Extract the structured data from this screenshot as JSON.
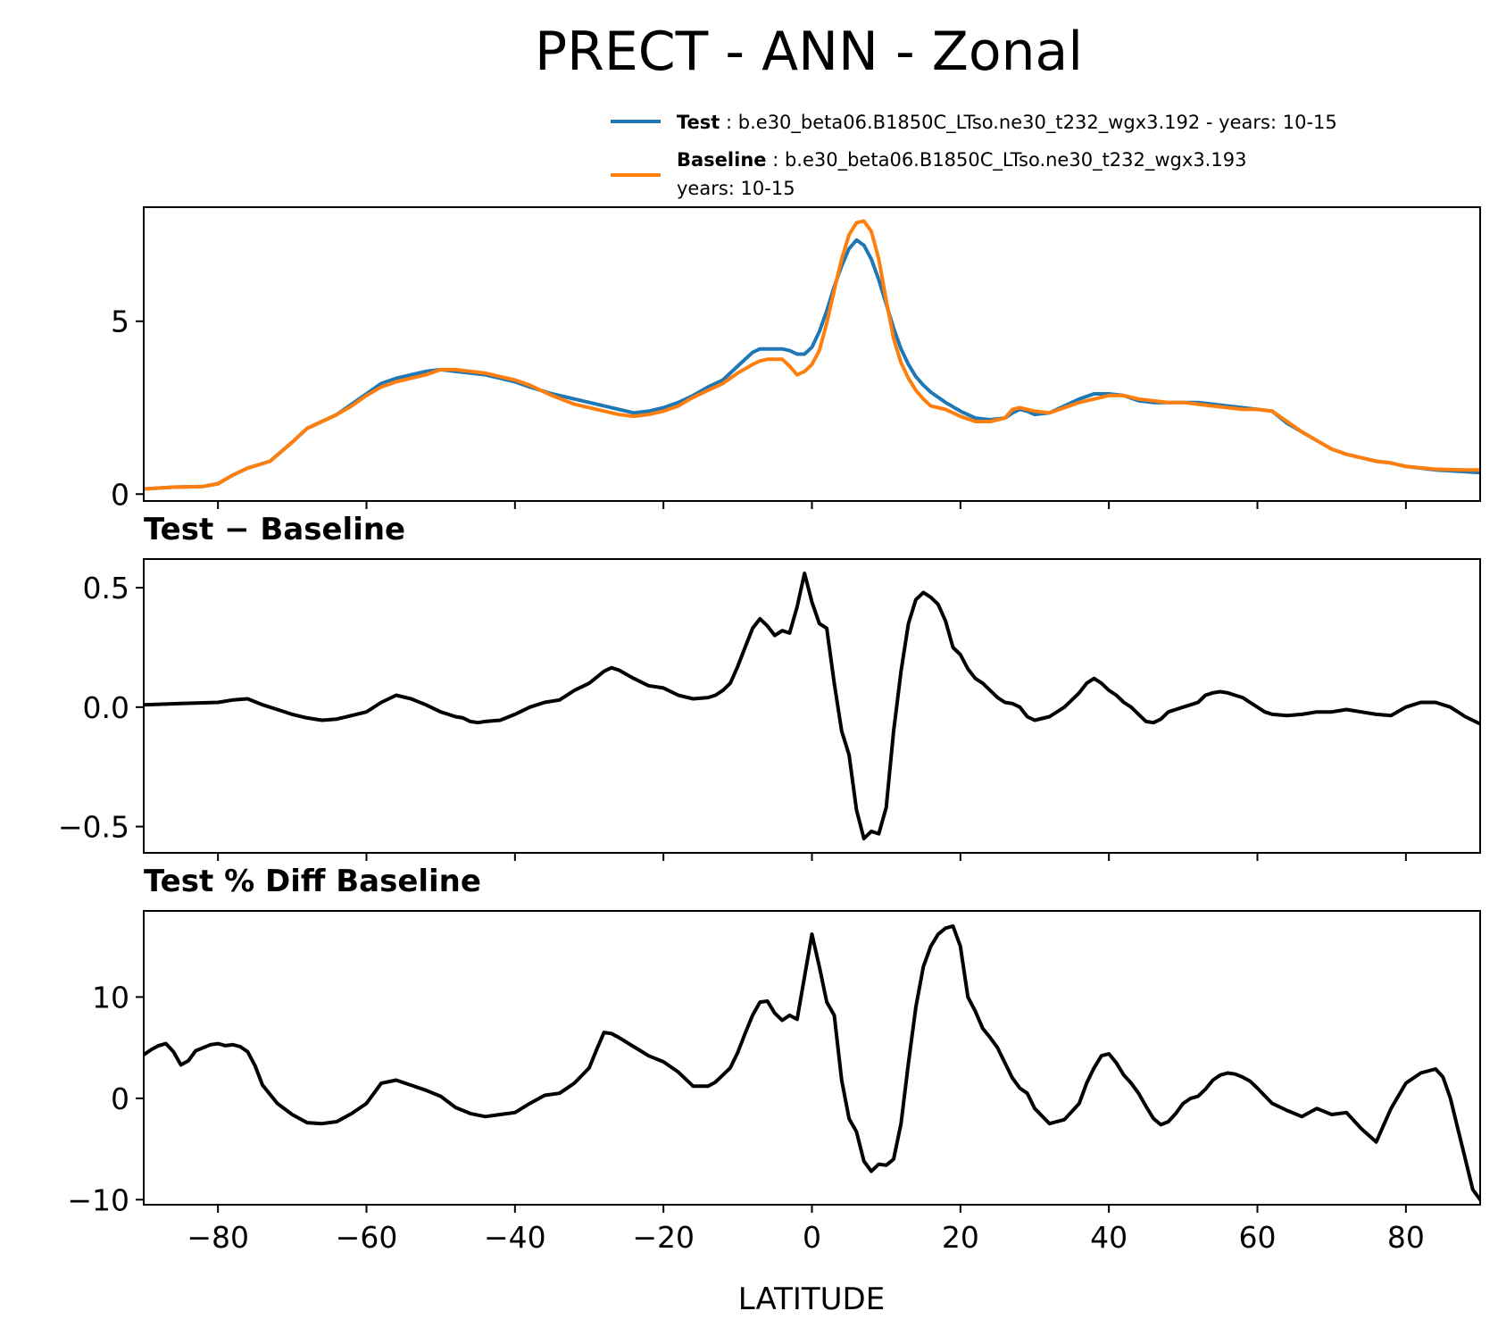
{
  "chart_data": {
    "type": "line",
    "title": "PRECT - ANN - Zonal",
    "xlabel": "LATITUDE",
    "xlim": [
      -90,
      90
    ],
    "xticks": [
      -80,
      -60,
      -40,
      -20,
      0,
      20,
      40,
      60,
      80
    ],
    "xtick_labels": [
      "−80",
      "−60",
      "−40",
      "−20",
      "0",
      "20",
      "40",
      "60",
      "80"
    ],
    "colors": {
      "test": "#1f77b4",
      "baseline": "#ff7f0e",
      "diff": "#000000"
    },
    "legend": {
      "test_label": "Test",
      "test_text": ": b.e30_beta06.B1850C_LTso.ne30_t232_wgx3.192 - years: 10-15",
      "baseline_label": "Baseline",
      "baseline_text": ": b.e30_beta06.B1850C_LTso.ne30_t232_wgx3.193",
      "baseline_text2": "years: 10-15"
    },
    "panels": [
      {
        "title": "",
        "ylim": [
          -0.2,
          8.3
        ],
        "yticks": [
          0,
          5
        ],
        "ytick_labels": [
          "0",
          "5"
        ],
        "series": [
          {
            "name": "Test",
            "color_key": "test",
            "x": [
              -90,
              -86,
              -82,
              -80,
              -78,
              -76,
              -73,
              -70,
              -68,
              -66,
              -64,
              -62,
              -60,
              -58,
              -56,
              -54,
              -52,
              -50,
              -48,
              -46,
              -44,
              -42,
              -40,
              -38,
              -35,
              -32,
              -29,
              -26,
              -24,
              -22,
              -20,
              -18,
              -16,
              -14,
              -12,
              -10,
              -8,
              -7,
              -6,
              -5,
              -4,
              -3,
              -2,
              -1,
              0,
              1,
              2,
              3,
              4,
              5,
              6,
              7,
              8,
              9,
              10,
              11,
              12,
              13,
              14,
              15,
              16,
              17,
              18,
              20,
              22,
              24,
              26,
              27,
              28,
              29,
              30,
              32,
              34,
              36,
              38,
              40,
              42,
              44,
              46,
              48,
              50,
              52,
              54,
              56,
              58,
              60,
              62,
              64,
              66,
              68,
              70,
              72,
              74,
              76,
              78,
              80,
              84,
              88,
              90
            ],
            "values": [
              0.15,
              0.2,
              0.22,
              0.3,
              0.55,
              0.75,
              0.95,
              1.5,
              1.9,
              2.1,
              2.3,
              2.6,
              2.9,
              3.2,
              3.35,
              3.45,
              3.55,
              3.6,
              3.55,
              3.5,
              3.45,
              3.35,
              3.25,
              3.1,
              2.9,
              2.75,
              2.6,
              2.45,
              2.35,
              2.4,
              2.5,
              2.65,
              2.85,
              3.1,
              3.3,
              3.7,
              4.1,
              4.2,
              4.2,
              4.2,
              4.2,
              4.15,
              4.05,
              4.05,
              4.25,
              4.7,
              5.3,
              6.0,
              6.6,
              7.1,
              7.35,
              7.2,
              6.8,
              6.2,
              5.5,
              4.8,
              4.2,
              3.75,
              3.4,
              3.15,
              2.95,
              2.8,
              2.65,
              2.4,
              2.2,
              2.15,
              2.2,
              2.35,
              2.45,
              2.4,
              2.3,
              2.35,
              2.55,
              2.75,
              2.9,
              2.9,
              2.85,
              2.7,
              2.65,
              2.65,
              2.65,
              2.65,
              2.6,
              2.55,
              2.5,
              2.45,
              2.4,
              2.05,
              1.8,
              1.55,
              1.3,
              1.15,
              1.05,
              0.95,
              0.9,
              0.8,
              0.7,
              0.65,
              0.62
            ]
          },
          {
            "name": "Baseline",
            "color_key": "baseline",
            "x": [
              -90,
              -86,
              -82,
              -80,
              -78,
              -76,
              -73,
              -70,
              -68,
              -66,
              -64,
              -62,
              -60,
              -58,
              -56,
              -54,
              -52,
              -50,
              -48,
              -46,
              -44,
              -42,
              -40,
              -38,
              -35,
              -32,
              -29,
              -26,
              -24,
              -22,
              -20,
              -18,
              -16,
              -14,
              -12,
              -10,
              -8,
              -7,
              -6,
              -5,
              -4,
              -3,
              -2,
              -1,
              0,
              1,
              2,
              3,
              4,
              5,
              6,
              7,
              8,
              9,
              10,
              11,
              12,
              13,
              14,
              15,
              16,
              17,
              18,
              20,
              22,
              24,
              26,
              27,
              28,
              29,
              30,
              32,
              34,
              36,
              38,
              40,
              42,
              44,
              46,
              48,
              50,
              52,
              54,
              56,
              58,
              60,
              62,
              64,
              66,
              68,
              70,
              72,
              74,
              76,
              78,
              80,
              84,
              88,
              90
            ],
            "values": [
              0.15,
              0.2,
              0.22,
              0.3,
              0.55,
              0.75,
              0.95,
              1.5,
              1.9,
              2.1,
              2.3,
              2.55,
              2.85,
              3.1,
              3.25,
              3.35,
              3.45,
              3.6,
              3.6,
              3.55,
              3.5,
              3.4,
              3.3,
              3.15,
              2.85,
              2.6,
              2.45,
              2.3,
              2.25,
              2.3,
              2.4,
              2.55,
              2.8,
              3.0,
              3.2,
              3.5,
              3.75,
              3.85,
              3.9,
              3.9,
              3.9,
              3.7,
              3.45,
              3.55,
              3.75,
              4.15,
              4.95,
              5.9,
              6.8,
              7.5,
              7.85,
              7.9,
              7.6,
              6.8,
              5.6,
              4.5,
              3.8,
              3.35,
              3.0,
              2.75,
              2.55,
              2.5,
              2.45,
              2.25,
              2.1,
              2.1,
              2.2,
              2.45,
              2.5,
              2.45,
              2.4,
              2.35,
              2.5,
              2.65,
              2.75,
              2.85,
              2.85,
              2.75,
              2.7,
              2.65,
              2.65,
              2.6,
              2.55,
              2.5,
              2.45,
              2.45,
              2.4,
              2.1,
              1.8,
              1.55,
              1.3,
              1.15,
              1.05,
              0.95,
              0.9,
              0.8,
              0.72,
              0.7,
              0.7
            ]
          }
        ]
      },
      {
        "title": "Test − Baseline",
        "ylim": [
          -0.61,
          0.62
        ],
        "yticks": [
          -0.5,
          0.0,
          0.5
        ],
        "ytick_labels": [
          "−0.5",
          "0.0",
          "0.5"
        ],
        "series": [
          {
            "name": "Test − Baseline",
            "color_key": "diff",
            "x": [
              -90,
              -85,
              -80,
              -78,
              -76,
              -74,
              -72,
              -70,
              -68,
              -66,
              -64,
              -62,
              -60,
              -58,
              -56,
              -54,
              -52,
              -50,
              -48,
              -47,
              -46,
              -45,
              -44,
              -42,
              -40,
              -38,
              -36,
              -34,
              -32,
              -30,
              -28,
              -27,
              -26,
              -24,
              -22,
              -20,
              -18,
              -16,
              -14,
              -13,
              -12,
              -11,
              -10,
              -9,
              -8,
              -7,
              -6,
              -5,
              -4,
              -3,
              -2,
              -1,
              0,
              1,
              2,
              3,
              4,
              5,
              6,
              7,
              8,
              9,
              10,
              11,
              12,
              13,
              14,
              15,
              16,
              17,
              18,
              19,
              20,
              21,
              22,
              23,
              24,
              25,
              26,
              27,
              28,
              29,
              30,
              32,
              34,
              36,
              37,
              38,
              39,
              40,
              41,
              42,
              43,
              44,
              45,
              46,
              47,
              48,
              49,
              50,
              51,
              52,
              53,
              54,
              55,
              56,
              57,
              58,
              59,
              60,
              61,
              62,
              64,
              66,
              68,
              70,
              72,
              74,
              76,
              78,
              80,
              82,
              84,
              86,
              88,
              90
            ],
            "values": [
              0.01,
              0.015,
              0.02,
              0.03,
              0.035,
              0.01,
              -0.01,
              -0.03,
              -0.045,
              -0.055,
              -0.05,
              -0.035,
              -0.02,
              0.02,
              0.05,
              0.035,
              0.01,
              -0.02,
              -0.04,
              -0.045,
              -0.06,
              -0.065,
              -0.06,
              -0.055,
              -0.03,
              0.0,
              0.02,
              0.03,
              0.07,
              0.1,
              0.15,
              0.165,
              0.155,
              0.12,
              0.09,
              0.08,
              0.05,
              0.035,
              0.04,
              0.05,
              0.07,
              0.1,
              0.17,
              0.25,
              0.33,
              0.37,
              0.34,
              0.3,
              0.32,
              0.31,
              0.42,
              0.56,
              0.44,
              0.35,
              0.33,
              0.1,
              -0.1,
              -0.2,
              -0.43,
              -0.55,
              -0.52,
              -0.53,
              -0.42,
              -0.1,
              0.15,
              0.35,
              0.45,
              0.48,
              0.46,
              0.43,
              0.36,
              0.25,
              0.22,
              0.16,
              0.12,
              0.1,
              0.07,
              0.04,
              0.02,
              0.015,
              0.0,
              -0.04,
              -0.055,
              -0.04,
              0.0,
              0.06,
              0.1,
              0.12,
              0.1,
              0.07,
              0.05,
              0.02,
              0.0,
              -0.03,
              -0.06,
              -0.065,
              -0.05,
              -0.02,
              -0.01,
              0.0,
              0.01,
              0.02,
              0.05,
              0.06,
              0.065,
              0.06,
              0.05,
              0.04,
              0.02,
              0.0,
              -0.02,
              -0.03,
              -0.035,
              -0.03,
              -0.02,
              -0.02,
              -0.01,
              -0.02,
              -0.03,
              -0.035,
              0.0,
              0.02,
              0.02,
              0.0,
              -0.04,
              -0.07
            ]
          }
        ]
      },
      {
        "title": "Test % Diff Baseline",
        "ylim": [
          -10.5,
          18.5
        ],
        "yticks": [
          -10,
          0,
          10
        ],
        "ytick_labels": [
          "−10",
          "0",
          "10"
        ],
        "series": [
          {
            "name": "Test % Diff Baseline",
            "color_key": "diff",
            "x": [
              -90,
              -89,
              -88,
              -87,
              -86,
              -85,
              -84,
              -83,
              -82,
              -81,
              -80,
              -79,
              -78,
              -77,
              -76,
              -75,
              -74,
              -72,
              -70,
              -68,
              -66,
              -64,
              -62,
              -60,
              -58,
              -56,
              -54,
              -52,
              -50,
              -48,
              -46,
              -44,
              -42,
              -40,
              -38,
              -36,
              -34,
              -32,
              -30,
              -29,
              -28,
              -27,
              -26,
              -24,
              -22,
              -20,
              -18,
              -16,
              -14,
              -13,
              -12,
              -11,
              -10,
              -9,
              -8,
              -7,
              -6,
              -5,
              -4,
              -3,
              -2,
              -1,
              0,
              1,
              2,
              3,
              4,
              5,
              6,
              7,
              8,
              9,
              10,
              11,
              12,
              13,
              14,
              15,
              16,
              17,
              18,
              19,
              20,
              21,
              22,
              23,
              24,
              25,
              26,
              27,
              28,
              29,
              30,
              32,
              34,
              36,
              37,
              38,
              39,
              40,
              41,
              42,
              43,
              44,
              45,
              46,
              47,
              48,
              49,
              50,
              51,
              52,
              53,
              54,
              55,
              56,
              57,
              58,
              59,
              60,
              62,
              64,
              66,
              68,
              70,
              72,
              74,
              76,
              78,
              80,
              82,
              84,
              85,
              86,
              87,
              88,
              89,
              90
            ],
            "values": [
              4.3,
              4.8,
              5.2,
              5.4,
              4.6,
              3.3,
              3.7,
              4.7,
              5.0,
              5.3,
              5.4,
              5.2,
              5.3,
              5.1,
              4.6,
              3.2,
              1.3,
              -0.5,
              -1.6,
              -2.4,
              -2.5,
              -2.3,
              -1.5,
              -0.5,
              1.5,
              1.8,
              1.3,
              0.8,
              0.2,
              -0.9,
              -1.5,
              -1.8,
              -1.6,
              -1.4,
              -0.5,
              0.3,
              0.5,
              1.5,
              3.0,
              4.8,
              6.5,
              6.4,
              6.0,
              5.1,
              4.2,
              3.6,
              2.6,
              1.2,
              1.2,
              1.6,
              2.3,
              3.0,
              4.5,
              6.4,
              8.2,
              9.5,
              9.6,
              8.4,
              7.7,
              8.2,
              7.8,
              12.0,
              16.2,
              13.0,
              9.5,
              8.2,
              1.8,
              -2.0,
              -3.3,
              -6.2,
              -7.2,
              -6.5,
              -6.6,
              -6.0,
              -2.5,
              3.5,
              9.0,
              13.0,
              15.0,
              16.2,
              16.8,
              17.0,
              15.0,
              10.0,
              8.6,
              6.9,
              6.0,
              5.0,
              3.5,
              2.0,
              1.0,
              0.5,
              -1.0,
              -2.5,
              -2.1,
              -0.5,
              1.5,
              3.0,
              4.2,
              4.4,
              3.5,
              2.3,
              1.5,
              0.5,
              -0.8,
              -2.0,
              -2.6,
              -2.3,
              -1.5,
              -0.5,
              0.0,
              0.2,
              0.9,
              1.8,
              2.3,
              2.5,
              2.4,
              2.1,
              1.7,
              1.0,
              -0.5,
              -1.2,
              -1.8,
              -1.0,
              -1.6,
              -1.4,
              -3.0,
              -4.3,
              -1.0,
              1.5,
              2.5,
              2.9,
              2.1,
              0.0,
              -3.0,
              -6.0,
              -9.0,
              -10.0
            ]
          }
        ]
      }
    ]
  }
}
